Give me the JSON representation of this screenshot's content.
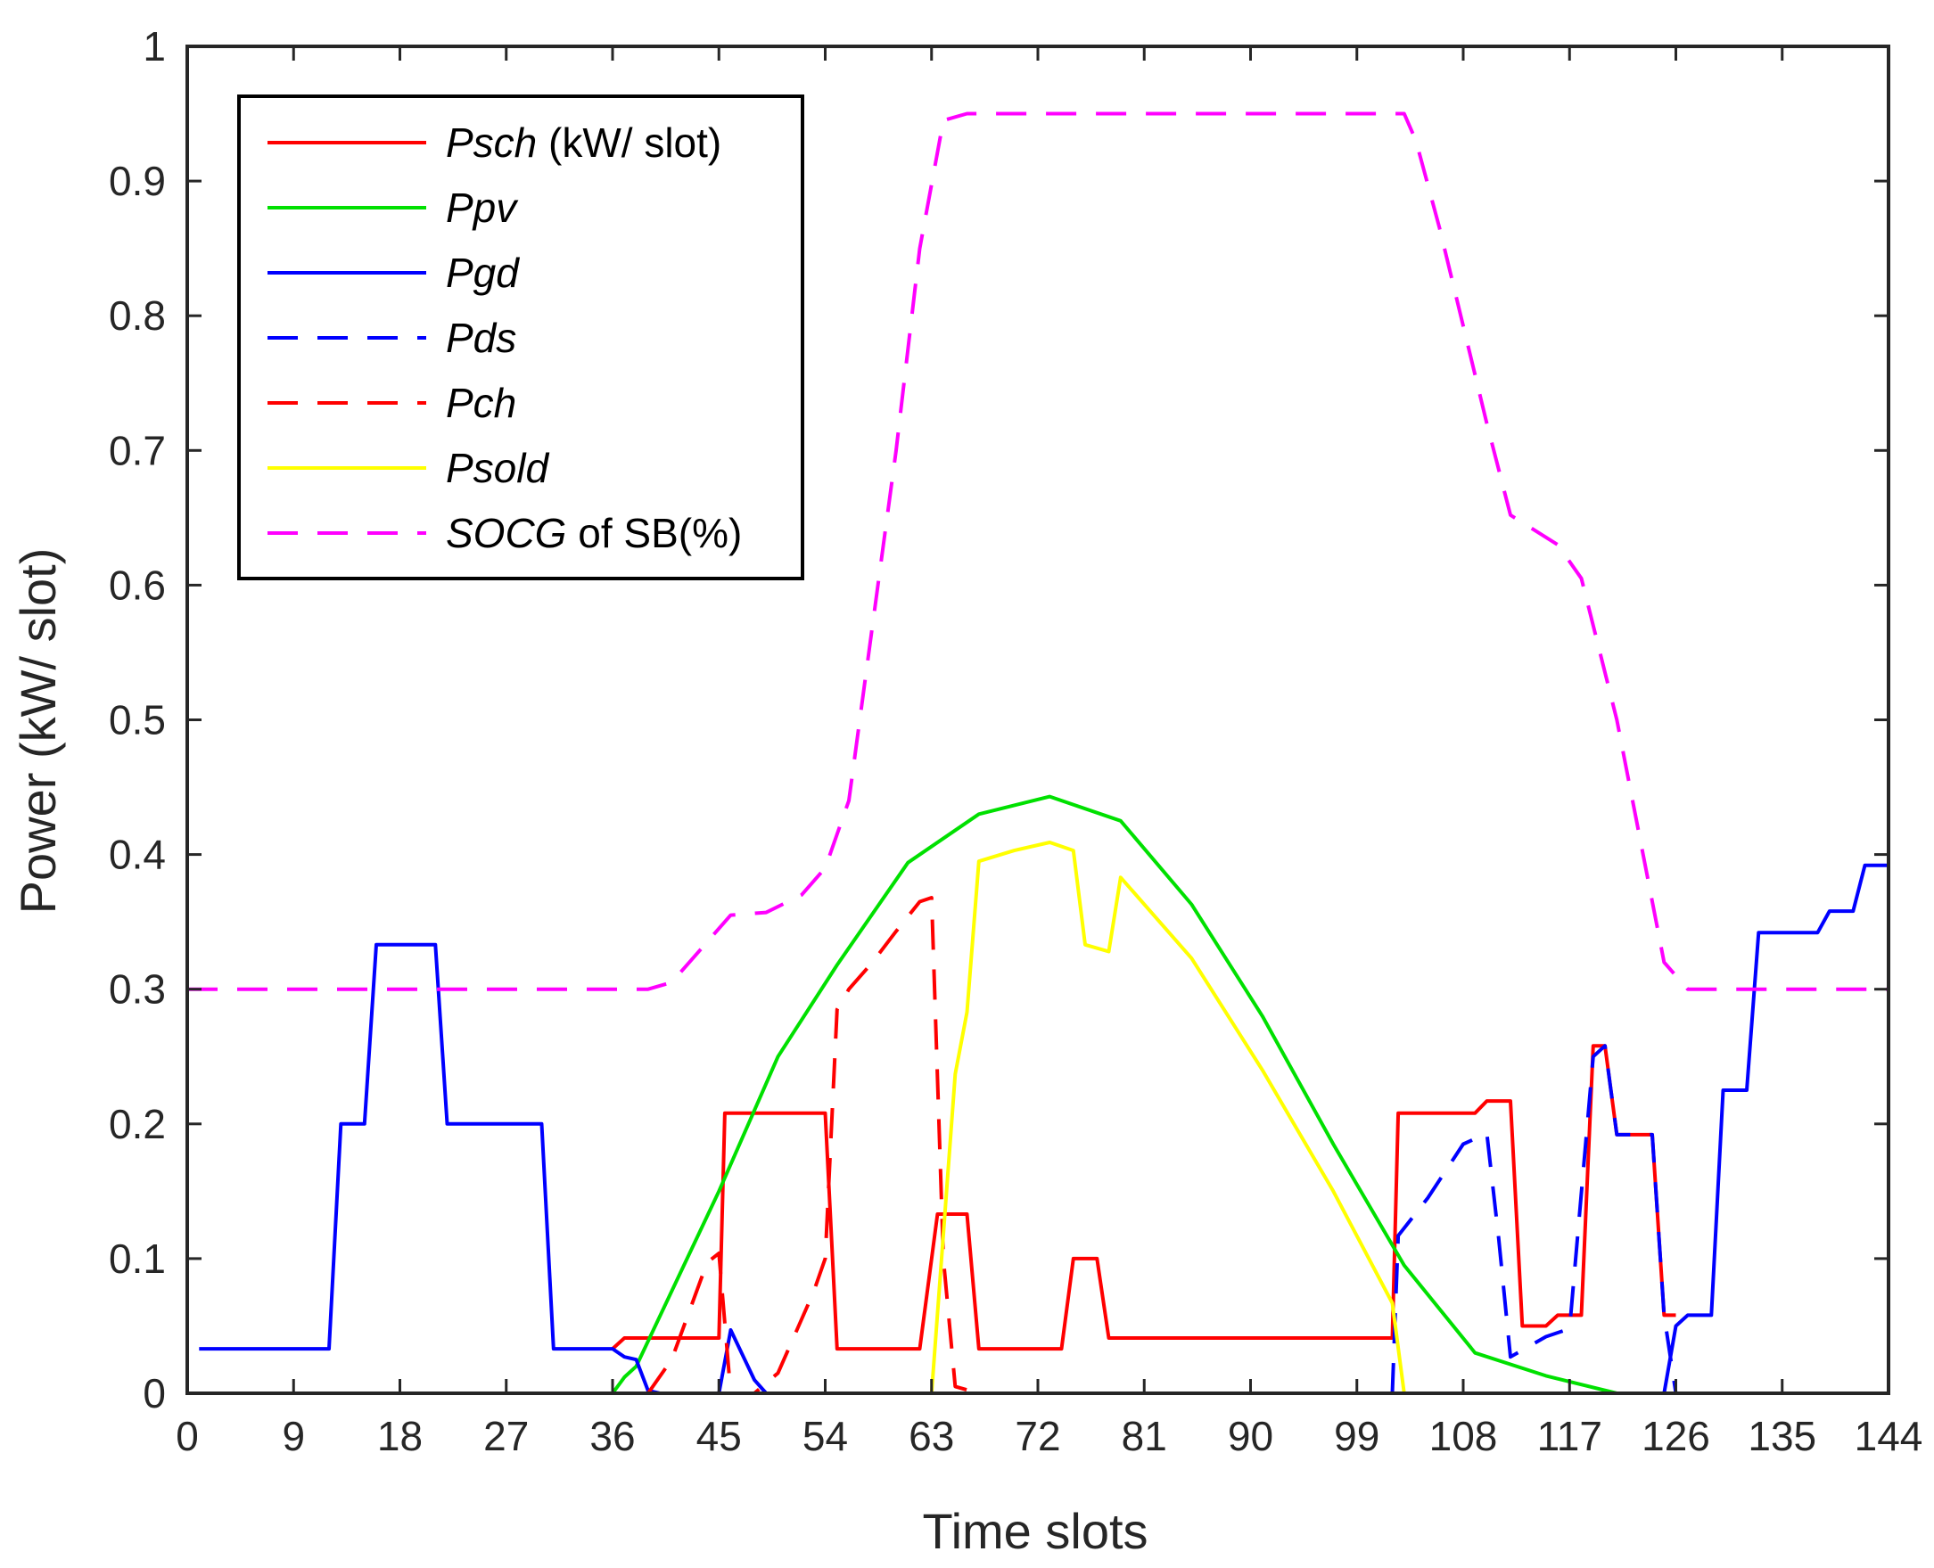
{
  "chart_data": {
    "type": "line",
    "title": "",
    "xlabel": "Time slots",
    "ylabel": "Power (kW/ slot)",
    "xlim": [
      0,
      144
    ],
    "ylim": [
      0,
      1
    ],
    "xticks": [
      0,
      9,
      18,
      27,
      36,
      45,
      54,
      63,
      72,
      81,
      90,
      99,
      108,
      117,
      126,
      135,
      144
    ],
    "yticks": [
      0,
      0.1,
      0.2,
      0.3,
      0.4,
      0.5,
      0.6,
      0.7,
      0.8,
      0.9,
      1
    ],
    "legend_position": "top-left",
    "series": [
      {
        "name": "Psch",
        "legend_italic": "Psch",
        "legend_rest": " (kW/ slot)",
        "color": "#ff0000",
        "dash": "solid",
        "points": [
          [
            36,
            0.033
          ],
          [
            37,
            0.041
          ],
          [
            45,
            0.041
          ],
          [
            45.5,
            0.208
          ],
          [
            54,
            0.208
          ],
          [
            55,
            0.033
          ],
          [
            62,
            0.033
          ],
          [
            63.5,
            0.133
          ],
          [
            66,
            0.133
          ],
          [
            67,
            0.033
          ],
          [
            74,
            0.033
          ],
          [
            75,
            0.1
          ],
          [
            77,
            0.1
          ],
          [
            78,
            0.041
          ],
          [
            102,
            0.041
          ],
          [
            102.5,
            0.208
          ],
          [
            109,
            0.208
          ],
          [
            110,
            0.217
          ],
          [
            112,
            0.217
          ],
          [
            113,
            0.05
          ],
          [
            115,
            0.05
          ],
          [
            116,
            0.058
          ],
          [
            118,
            0.058
          ],
          [
            119,
            0.258
          ],
          [
            120,
            0.258
          ],
          [
            121,
            0.192
          ],
          [
            124,
            0.192
          ],
          [
            125,
            0.058
          ],
          [
            126,
            0.058
          ]
        ]
      },
      {
        "name": "Ppv",
        "legend_italic": "Ppv",
        "legend_rest": "",
        "color": "#00e000",
        "dash": "solid",
        "points": [
          [
            0,
            0
          ],
          [
            36,
            0
          ],
          [
            37,
            0.012
          ],
          [
            38,
            0.02
          ],
          [
            45,
            0.15
          ],
          [
            50,
            0.25
          ],
          [
            55,
            0.318
          ],
          [
            61,
            0.394
          ],
          [
            67,
            0.43
          ],
          [
            73,
            0.443
          ],
          [
            79,
            0.425
          ],
          [
            85,
            0.363
          ],
          [
            91,
            0.28
          ],
          [
            97,
            0.185
          ],
          [
            103,
            0.095
          ],
          [
            109,
            0.03
          ],
          [
            115,
            0.013
          ],
          [
            121,
            0
          ],
          [
            144,
            0
          ]
        ]
      },
      {
        "name": "Pgd",
        "legend_italic": "Pgd",
        "legend_rest": "",
        "color": "#0000ff",
        "dash": "solid",
        "points": [
          [
            1,
            0.033
          ],
          [
            12,
            0.033
          ],
          [
            13,
            0.2
          ],
          [
            15,
            0.2
          ],
          [
            16,
            0.333
          ],
          [
            21,
            0.333
          ],
          [
            22,
            0.2
          ],
          [
            30,
            0.2
          ],
          [
            31,
            0.033
          ],
          [
            36,
            0.033
          ],
          [
            37,
            0.027
          ],
          [
            38,
            0.025
          ],
          [
            39,
            0.002
          ],
          [
            40,
            0
          ],
          [
            45,
            0
          ],
          [
            46,
            0.047
          ],
          [
            48,
            0.01
          ],
          [
            49,
            0
          ],
          [
            63,
            0
          ],
          [
            102,
            0
          ],
          [
            125,
            0
          ],
          [
            126,
            0.05
          ],
          [
            127,
            0.058
          ],
          [
            129,
            0.058
          ],
          [
            130,
            0.225
          ],
          [
            132,
            0.225
          ],
          [
            133,
            0.342
          ],
          [
            138,
            0.342
          ],
          [
            139,
            0.358
          ],
          [
            141,
            0.358
          ],
          [
            142,
            0.392
          ],
          [
            144,
            0.392
          ]
        ]
      },
      {
        "name": "Pds",
        "legend_italic": "Pds",
        "legend_rest": "",
        "color": "#0000ff",
        "dash": "dashed",
        "points": [
          [
            102,
            0
          ],
          [
            102.5,
            0.117
          ],
          [
            105,
            0.145
          ],
          [
            108,
            0.185
          ],
          [
            110,
            0.193
          ],
          [
            111,
            0.115
          ],
          [
            112,
            0.027
          ],
          [
            115,
            0.042
          ],
          [
            117,
            0.048
          ],
          [
            119,
            0.25
          ],
          [
            120,
            0.258
          ],
          [
            121,
            0.192
          ],
          [
            124,
            0.192
          ],
          [
            125,
            0.058
          ],
          [
            126,
            0
          ]
        ]
      },
      {
        "name": "Pch",
        "legend_italic": "Pch",
        "legend_rest": "",
        "color": "#ff0000",
        "dash": "dashed",
        "points": [
          [
            39,
            0
          ],
          [
            41,
            0.025
          ],
          [
            44,
            0.097
          ],
          [
            45,
            0.104
          ],
          [
            46,
            0
          ],
          [
            48,
            0
          ],
          [
            50,
            0.015
          ],
          [
            53,
            0.075
          ],
          [
            54,
            0.1
          ],
          [
            55,
            0.285
          ],
          [
            56,
            0.3
          ],
          [
            58,
            0.32
          ],
          [
            60,
            0.343
          ],
          [
            62,
            0.365
          ],
          [
            63,
            0.368
          ],
          [
            64,
            0.1
          ],
          [
            65,
            0.005
          ],
          [
            67,
            0
          ],
          [
            102,
            0
          ]
        ]
      },
      {
        "name": "Psold",
        "legend_italic": "Psold",
        "legend_rest": "",
        "color": "#ffff00",
        "dash": "solid",
        "points": [
          [
            0,
            0
          ],
          [
            63,
            0
          ],
          [
            65,
            0.237
          ],
          [
            66,
            0.283
          ],
          [
            67,
            0.395
          ],
          [
            70,
            0.403
          ],
          [
            73,
            0.409
          ],
          [
            75,
            0.403
          ],
          [
            76,
            0.333
          ],
          [
            78,
            0.328
          ],
          [
            79,
            0.383
          ],
          [
            85,
            0.323
          ],
          [
            91,
            0.24
          ],
          [
            97,
            0.15
          ],
          [
            102,
            0.067
          ],
          [
            103,
            0
          ],
          [
            144,
            0
          ]
        ]
      },
      {
        "name": "SOCG of SB(%)",
        "legend_italic": "SOCG",
        "legend_rest": " of SB(%)",
        "color": "#ff00ff",
        "dash": "dashed",
        "points": [
          [
            0,
            0.3
          ],
          [
            39,
            0.3
          ],
          [
            41,
            0.305
          ],
          [
            44,
            0.335
          ],
          [
            46,
            0.355
          ],
          [
            49,
            0.357
          ],
          [
            52,
            0.37
          ],
          [
            54,
            0.39
          ],
          [
            56,
            0.44
          ],
          [
            60,
            0.7
          ],
          [
            62,
            0.85
          ],
          [
            64,
            0.945
          ],
          [
            66,
            0.95
          ],
          [
            103,
            0.95
          ],
          [
            104,
            0.93
          ],
          [
            106,
            0.865
          ],
          [
            110,
            0.72
          ],
          [
            112,
            0.652
          ],
          [
            116,
            0.63
          ],
          [
            118,
            0.605
          ],
          [
            119,
            0.57
          ],
          [
            121,
            0.5
          ],
          [
            123,
            0.41
          ],
          [
            125,
            0.32
          ],
          [
            127,
            0.3
          ],
          [
            144,
            0.3
          ]
        ]
      }
    ]
  }
}
